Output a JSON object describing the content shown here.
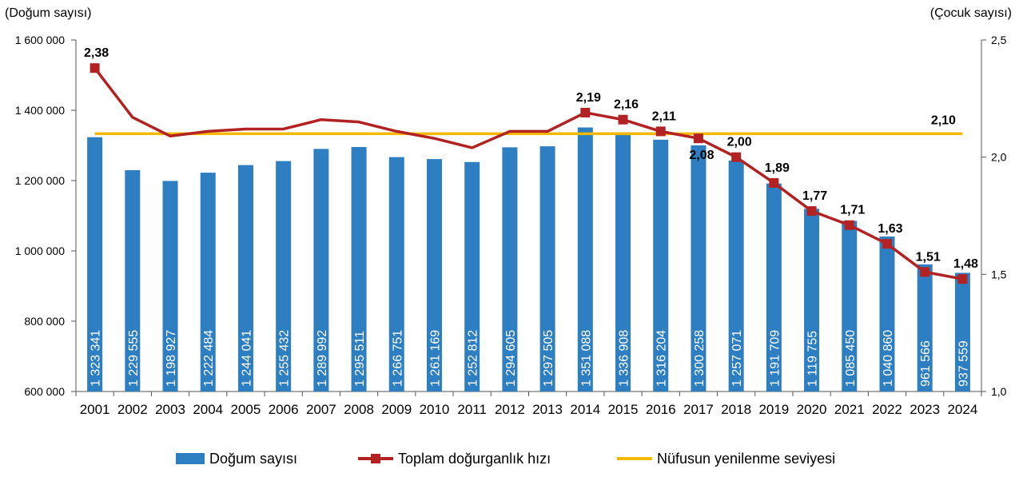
{
  "chart_data": {
    "type": "bar",
    "categories": [
      "2001",
      "2002",
      "2003",
      "2004",
      "2005",
      "2006",
      "2007",
      "2008",
      "2009",
      "2010",
      "2011",
      "2012",
      "2013",
      "2014",
      "2015",
      "2016",
      "2017",
      "2018",
      "2019",
      "2020",
      "2021",
      "2022",
      "2023",
      "2024"
    ],
    "series": [
      {
        "name": "Doğum sayısı",
        "type": "bar",
        "axis": "left",
        "color": "#2E7FC1",
        "values": [
          1323341,
          1229555,
          1198927,
          1222484,
          1244041,
          1255432,
          1289992,
          1295511,
          1266751,
          1261169,
          1252812,
          1294605,
          1297505,
          1351088,
          1336908,
          1316204,
          1300258,
          1257071,
          1191709,
          1119755,
          1085450,
          1040860,
          961566,
          937559
        ],
        "labels": [
          "1 323 341",
          "1 229 555",
          "1 198 927",
          "1 222 484",
          "1 244 041",
          "1 255 432",
          "1 289 992",
          "1 295 511",
          "1 266 751",
          "1 261 169",
          "1 252 812",
          "1 294 605",
          "1 297 505",
          "1 351 088",
          "1 336 908",
          "1 316 204",
          "1 300 258",
          "1 257 071",
          "1 191 709",
          "1 119 755",
          "1 085 450",
          "1 040 860",
          "961 566",
          "937 559"
        ]
      },
      {
        "name": "Toplam doğurganlık hızı",
        "type": "line",
        "axis": "right",
        "color": "#B22222",
        "values": [
          2.38,
          2.17,
          2.09,
          2.11,
          2.12,
          2.12,
          2.16,
          2.15,
          2.11,
          2.08,
          2.04,
          2.11,
          2.11,
          2.19,
          2.16,
          2.11,
          2.08,
          2.0,
          1.89,
          1.77,
          1.71,
          1.63,
          1.51,
          1.48
        ],
        "point_labels": [
          {
            "index": 0,
            "text": "2,38"
          },
          {
            "index": 13,
            "text": "2,19"
          },
          {
            "index": 14,
            "text": "2,16"
          },
          {
            "index": 15,
            "text": "2,11"
          },
          {
            "index": 16,
            "text": "2,08"
          },
          {
            "index": 17,
            "text": "2,00"
          },
          {
            "index": 18,
            "text": "1,89"
          },
          {
            "index": 19,
            "text": "1,77"
          },
          {
            "index": 20,
            "text": "1,71"
          },
          {
            "index": 21,
            "text": "1,63"
          },
          {
            "index": 22,
            "text": "1,51"
          },
          {
            "index": 23,
            "text": "1,48"
          }
        ]
      },
      {
        "name": "Nüfusun yenilenme seviyesi",
        "type": "line",
        "axis": "right",
        "color": "#F5B800",
        "values": [
          2.1,
          2.1,
          2.1,
          2.1,
          2.1,
          2.1,
          2.1,
          2.1,
          2.1,
          2.1,
          2.1,
          2.1,
          2.1,
          2.1,
          2.1,
          2.1,
          2.1,
          2.1,
          2.1,
          2.1,
          2.1,
          2.1,
          2.1,
          2.1
        ],
        "end_label": "2,10"
      }
    ],
    "y_left": {
      "title": "(Doğum sayısı)",
      "ylim": [
        600000,
        1600000
      ],
      "ticks": [
        600000,
        800000,
        1000000,
        1200000,
        1400000,
        1600000
      ],
      "tick_labels": [
        "600 000",
        "800 000",
        "1 000 000",
        "1 200 000",
        "1 400 000",
        "1 600 000"
      ]
    },
    "y_right": {
      "title": "(Çocuk sayısı)",
      "ylim": [
        1.0,
        2.5
      ],
      "ticks": [
        1.0,
        1.5,
        2.0,
        2.5
      ],
      "tick_labels": [
        "1,0",
        "1,5",
        "2,0",
        "2,5"
      ]
    },
    "grid": false,
    "legend": "bottom"
  }
}
